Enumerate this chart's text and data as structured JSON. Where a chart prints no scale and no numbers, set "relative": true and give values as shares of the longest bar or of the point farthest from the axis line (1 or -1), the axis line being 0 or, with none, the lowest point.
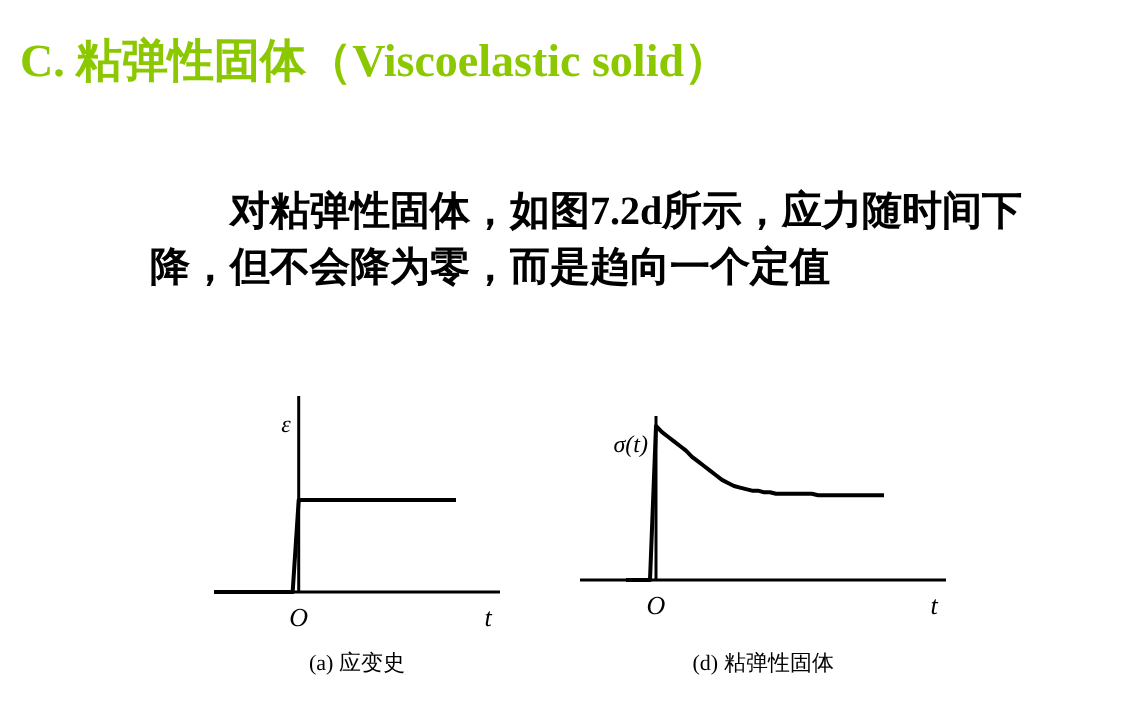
{
  "chart_data": [
    {
      "type": "other",
      "title": "C. 粘弹性固体（Viscoelastic solid）",
      "annotations": [
        "对粘弹性固体，如图7.2d所示，应力随时间下降，但不会降为零，而是趋向一个定值"
      ]
    },
    {
      "type": "line",
      "relative": true,
      "xlabel": "t",
      "ylabel": "ε",
      "categories": [
        null,
        null,
        null,
        null,
        null,
        null,
        null,
        null,
        null,
        null,
        null,
        null,
        null,
        null,
        null,
        null,
        null,
        null,
        null,
        null,
        null,
        null,
        null,
        null,
        null,
        null,
        null,
        null,
        null,
        null,
        null,
        null,
        null,
        null,
        null,
        null,
        null,
        null,
        null,
        null,
        null
      ],
      "values": [
        0,
        0,
        0,
        0,
        0,
        0,
        0,
        0,
        0,
        0,
        0,
        0,
        0,
        0,
        1,
        1,
        1,
        1,
        1,
        1,
        1,
        1,
        1,
        1,
        1,
        1,
        1,
        1,
        1,
        1,
        1,
        1,
        1,
        1,
        1,
        1,
        1,
        1,
        1,
        1,
        1
      ],
      "color": "#000000",
      "annotations": [
        "O",
        "(a) 应变史"
      ]
    },
    {
      "type": "line",
      "relative": true,
      "xlabel": "t",
      "ylabel": "σ(t)",
      "categories": [
        null,
        null,
        null,
        null,
        null,
        null,
        null,
        null,
        null,
        null,
        null,
        null,
        null,
        null,
        null,
        null,
        null,
        null,
        null,
        null,
        null,
        null,
        null,
        null,
        null,
        null,
        null,
        null,
        null,
        null,
        null,
        null,
        null,
        null,
        null,
        null,
        null,
        null,
        null,
        null,
        null,
        null,
        null,
        null
      ],
      "values": [
        0,
        0,
        0,
        0,
        0,
        1,
        0.96,
        0.93,
        0.9,
        0.87,
        0.84,
        0.8,
        0.77,
        0.74,
        0.71,
        0.68,
        0.65,
        0.63,
        0.61,
        0.6,
        0.59,
        0.58,
        0.58,
        0.57,
        0.57,
        0.56,
        0.56,
        0.56,
        0.56,
        0.56,
        0.56,
        0.56,
        0.55,
        0.55,
        0.55,
        0.55,
        0.55,
        0.55,
        0.55,
        0.55,
        0.55,
        0.55,
        0.55,
        0.55
      ],
      "color": "#000000",
      "annotations": [
        "O",
        "(d) 粘弹性固体"
      ]
    }
  ]
}
